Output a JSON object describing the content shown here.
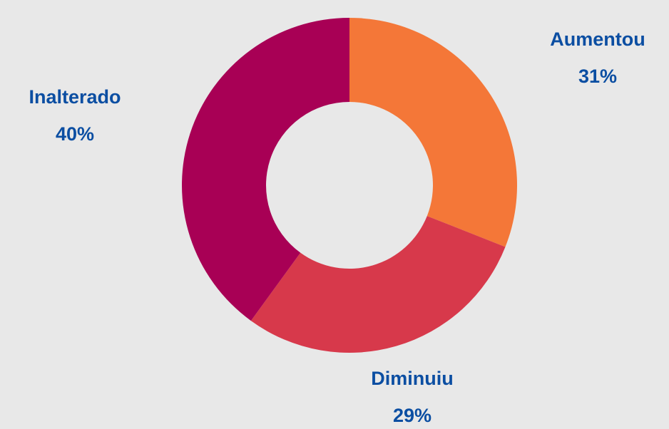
{
  "chart_data": {
    "type": "donut",
    "categories": [
      "Aumentou",
      "Diminuiu",
      "Inalterado"
    ],
    "values": [
      31,
      29,
      40
    ],
    "value_labels": [
      "31%",
      "29%",
      "40%"
    ],
    "colors": [
      "#f47738",
      "#d7394b",
      "#a80055"
    ],
    "label_color": "#0b4ea2"
  }
}
